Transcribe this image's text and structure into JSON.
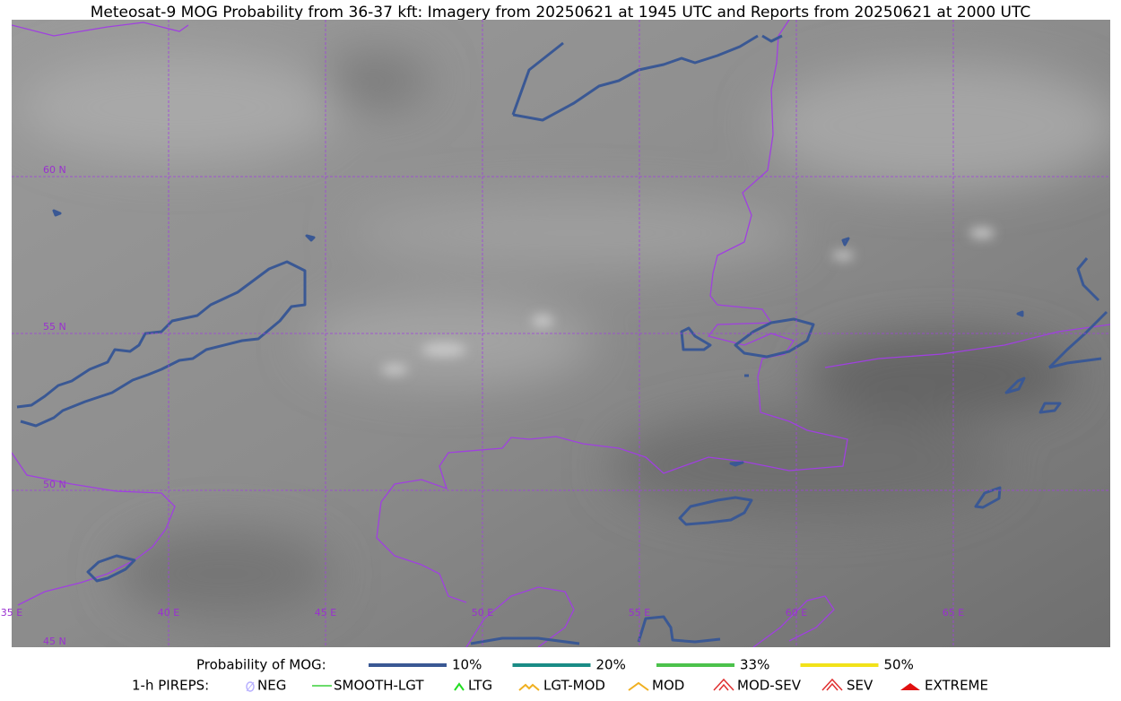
{
  "title": "Meteosat-9 MOG Probability from 36-37 kft: Imagery from 20250621 at 1945 UTC and Reports from 20250621 at 2000 UTC",
  "map": {
    "lat_labels": [
      "60 N",
      "55 N",
      "50 N",
      "45 N"
    ],
    "lon_labels": [
      "35 E",
      "40 E",
      "45 E",
      "50 E",
      "55 E",
      "60 E",
      "65 E"
    ]
  },
  "legend": {
    "mog_label": "Probability of MOG:",
    "mog_levels": [
      {
        "label": "10%",
        "color": "#3a5894"
      },
      {
        "label": "20%",
        "color": "#1a8c86"
      },
      {
        "label": "33%",
        "color": "#4cc24c"
      },
      {
        "label": "50%",
        "color": "#f2e21a"
      }
    ],
    "pirep_label": "1-h PIREPS:",
    "pireps": [
      "NEG",
      "SMOOTH-LGT",
      "LTG",
      "LGT-MOD",
      "MOD",
      "MOD-SEV",
      "SEV",
      "EXTREME"
    ]
  }
}
